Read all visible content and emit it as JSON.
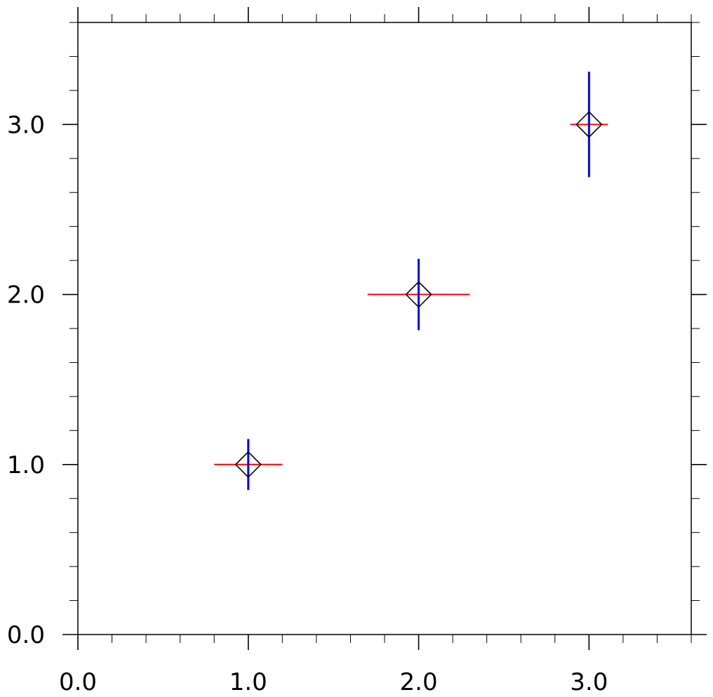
{
  "chart_data": {
    "type": "scatter",
    "title": "",
    "xlabel": "",
    "ylabel": "",
    "xlim": [
      0,
      3.6
    ],
    "ylim": [
      0,
      3.6
    ],
    "grid": false,
    "legend": "none",
    "x_ticks": [
      "0.0",
      "1.0",
      "2.0",
      "3.0"
    ],
    "y_ticks": [
      "0.0",
      "1.0",
      "2.0",
      "3.0"
    ],
    "x_tick_values": [
      0,
      1,
      2,
      3
    ],
    "y_tick_values": [
      0,
      1,
      2,
      3
    ],
    "minor_tick_step": 0.2,
    "marker": "hollow-diamond",
    "colors": {
      "marker": "#000000",
      "x_error": "#ff0000",
      "y_error": "#0000ff",
      "axes": "#000000"
    },
    "points": [
      {
        "x": 1.0,
        "y": 1.0,
        "x_err": 0.2,
        "y_err": 0.15
      },
      {
        "x": 2.0,
        "y": 2.0,
        "x_err": 0.3,
        "y_err": 0.21
      },
      {
        "x": 3.0,
        "y": 3.0,
        "x_err": 0.11,
        "y_err": 0.31
      }
    ]
  }
}
